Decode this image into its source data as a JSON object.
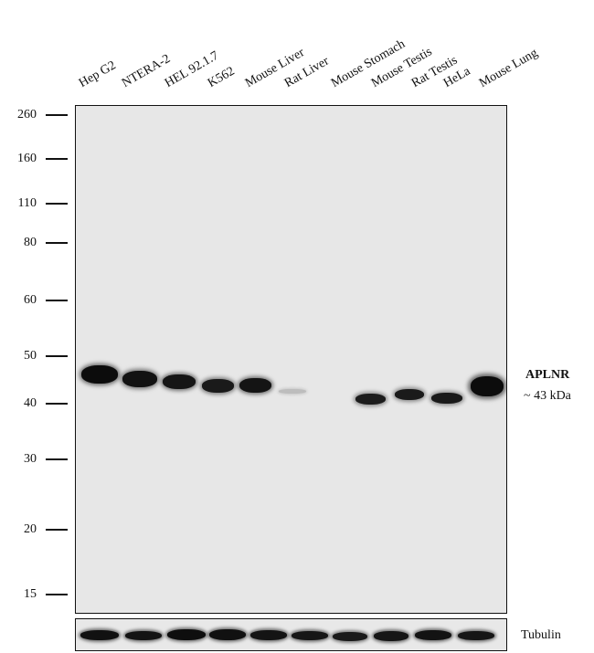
{
  "lanes": [
    "Hep G2",
    "NTERA-2",
    "HEL 92.1.7",
    "K562",
    "Mouse Liver",
    "Rat Liver",
    "Mouse Stomach",
    "Mouse Testis",
    "Rat Testis",
    "HeLa",
    "Mouse Lung"
  ],
  "markers": [
    "260",
    "160",
    "110",
    "80",
    "60",
    "50",
    "40",
    "30",
    "20",
    "15"
  ],
  "target": {
    "name": "APLNR",
    "size": "~ 43 kDa"
  },
  "loading_control": "Tubulin"
}
